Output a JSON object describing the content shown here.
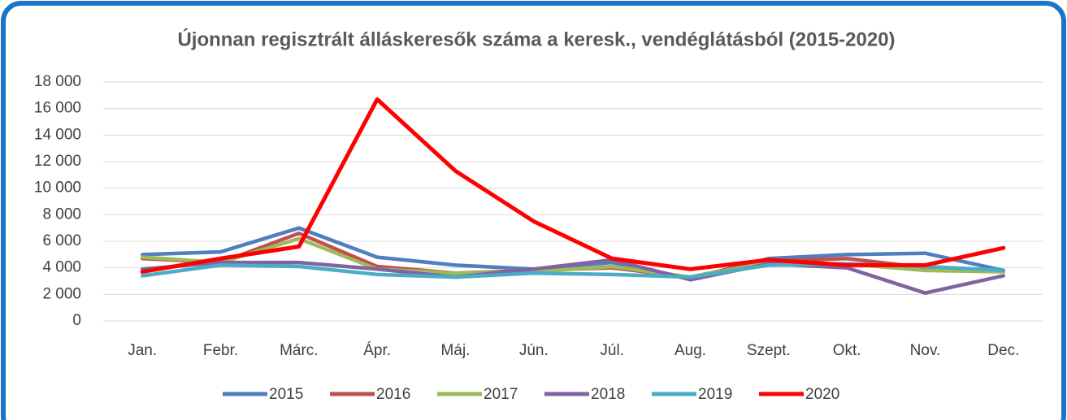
{
  "chart_data": {
    "type": "line",
    "title": "Újonnan regisztrált álláskeresők száma a keresk., vendéglátásból (2015-2020)",
    "categories": [
      "Jan.",
      "Febr.",
      "Márc.",
      "Ápr.",
      "Máj.",
      "Jún.",
      "Júl.",
      "Aug.",
      "Szept.",
      "Okt.",
      "Nov.",
      "Dec."
    ],
    "series": [
      {
        "name": "2015",
        "color": "#4f7fbe",
        "values": [
          5000,
          5200,
          7000,
          4800,
          4200,
          3900,
          4400,
          3200,
          4700,
          5000,
          5100,
          3800
        ]
      },
      {
        "name": "2016",
        "color": "#c0504d",
        "values": [
          4700,
          4400,
          6600,
          4100,
          3600,
          3800,
          4000,
          3300,
          4500,
          4700,
          4000,
          3800
        ]
      },
      {
        "name": "2017",
        "color": "#9bbb59",
        "values": [
          4800,
          4400,
          6200,
          3900,
          3600,
          3700,
          4100,
          3300,
          4400,
          4300,
          3800,
          3700
        ]
      },
      {
        "name": "2018",
        "color": "#8064a2",
        "values": [
          3900,
          4400,
          4400,
          3900,
          3300,
          3900,
          4600,
          3100,
          4300,
          4000,
          2100,
          3400
        ]
      },
      {
        "name": "2019",
        "color": "#4bacc6",
        "values": [
          3400,
          4200,
          4100,
          3500,
          3300,
          3600,
          3500,
          3300,
          4200,
          4300,
          4100,
          3800
        ]
      },
      {
        "name": "2020",
        "color": "#ff0000",
        "values": [
          3700,
          4700,
          5600,
          16700,
          11300,
          7500,
          4700,
          3900,
          4600,
          4200,
          4200,
          5500
        ]
      }
    ],
    "ylim": [
      0,
      18000
    ],
    "yticks": [
      0,
      {
        "value": 2000,
        "label": "2 000"
      },
      {
        "value": 4000,
        "label": "4 000"
      },
      {
        "value": 6000,
        "label": "6 000"
      },
      {
        "value": 8000,
        "label": "8 000"
      },
      {
        "value": 10000,
        "label": "10 000"
      },
      {
        "value": 12000,
        "label": "12 000"
      },
      {
        "value": 14000,
        "label": "14 000"
      },
      {
        "value": 16000,
        "label": "16 000"
      },
      {
        "value": 18000,
        "label": "18 000"
      }
    ],
    "grid": true,
    "legend": "bottom"
  }
}
